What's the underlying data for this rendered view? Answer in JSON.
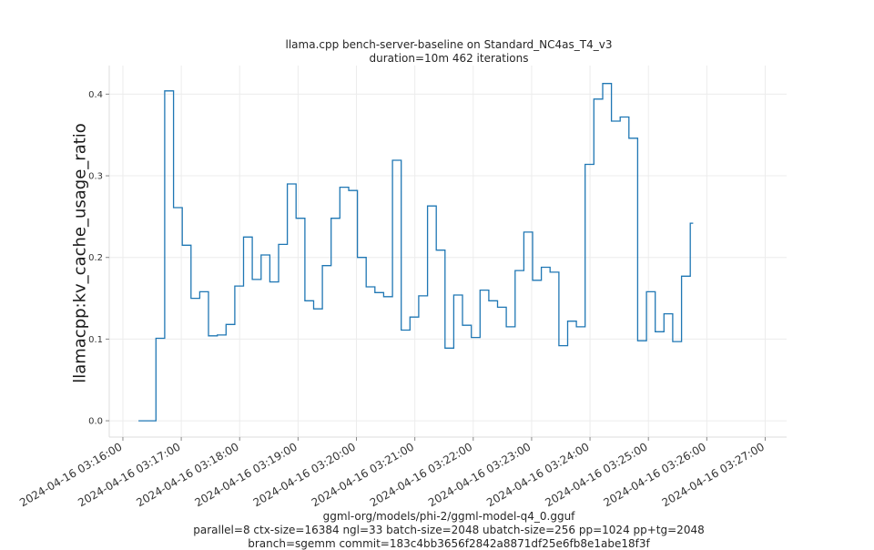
{
  "chart_data": {
    "type": "line",
    "title": "llama.cpp bench-server-baseline on Standard_NC4as_T4_v3",
    "subtitle": "duration=10m 462 iterations",
    "xlabel": "",
    "ylabel": "llamacpp:kv_cache_usage_ratio",
    "footer": [
      "ggml-org/models/phi-2/ggml-model-q4_0.gguf",
      "parallel=8 ctx-size=16384 ngl=33 batch-size=2048 ubatch-size=256 pp=1024 pp+tg=2048",
      "branch=sgemm commit=183c4bb3656f2842a8871df25e6fb8e1abe18f3f"
    ],
    "x_ticks": [
      "2024-04-16 03:16:00",
      "2024-04-16 03:17:00",
      "2024-04-16 03:18:00",
      "2024-04-16 03:19:00",
      "2024-04-16 03:20:00",
      "2024-04-16 03:21:00",
      "2024-04-16 03:22:00",
      "2024-04-16 03:23:00",
      "2024-04-16 03:24:00",
      "2024-04-16 03:25:00",
      "2024-04-16 03:26:00",
      "2024-04-16 03:27:00"
    ],
    "y_ticks": [
      "0.0",
      "0.1",
      "0.2",
      "0.3",
      "0.4"
    ],
    "xlim": [
      "2024-04-16 03:15:46",
      "2024-04-16 03:27:22"
    ],
    "ylim": [
      -0.02,
      0.435
    ],
    "grid": true,
    "line_color": "#1f77b4",
    "series": [
      {
        "points": [
          [
            "2024-04-16 03:16:16",
            0.0
          ],
          [
            "2024-04-16 03:16:34",
            0.101
          ],
          [
            "2024-04-16 03:16:43",
            0.404
          ],
          [
            "2024-04-16 03:16:52",
            0.261
          ],
          [
            "2024-04-16 03:17:01",
            0.215
          ],
          [
            "2024-04-16 03:17:10",
            0.15
          ],
          [
            "2024-04-16 03:17:19",
            0.158
          ],
          [
            "2024-04-16 03:17:28",
            0.104
          ],
          [
            "2024-04-16 03:17:37",
            0.105
          ],
          [
            "2024-04-16 03:17:46",
            0.118
          ],
          [
            "2024-04-16 03:17:55",
            0.165
          ],
          [
            "2024-04-16 03:18:04",
            0.225
          ],
          [
            "2024-04-16 03:18:13",
            0.173
          ],
          [
            "2024-04-16 03:18:22",
            0.203
          ],
          [
            "2024-04-16 03:18:31",
            0.17
          ],
          [
            "2024-04-16 03:18:40",
            0.216
          ],
          [
            "2024-04-16 03:18:49",
            0.29
          ],
          [
            "2024-04-16 03:18:58",
            0.248
          ],
          [
            "2024-04-16 03:19:07",
            0.147
          ],
          [
            "2024-04-16 03:19:16",
            0.137
          ],
          [
            "2024-04-16 03:19:25",
            0.19
          ],
          [
            "2024-04-16 03:19:34",
            0.248
          ],
          [
            "2024-04-16 03:19:43",
            0.286
          ],
          [
            "2024-04-16 03:19:52",
            0.282
          ],
          [
            "2024-04-16 03:20:01",
            0.2
          ],
          [
            "2024-04-16 03:20:10",
            0.164
          ],
          [
            "2024-04-16 03:20:19",
            0.157
          ],
          [
            "2024-04-16 03:20:28",
            0.152
          ],
          [
            "2024-04-16 03:20:37",
            0.319
          ],
          [
            "2024-04-16 03:20:46",
            0.111
          ],
          [
            "2024-04-16 03:20:55",
            0.127
          ],
          [
            "2024-04-16 03:21:04",
            0.153
          ],
          [
            "2024-04-16 03:21:13",
            0.263
          ],
          [
            "2024-04-16 03:21:22",
            0.209
          ],
          [
            "2024-04-16 03:21:31",
            0.089
          ],
          [
            "2024-04-16 03:21:40",
            0.154
          ],
          [
            "2024-04-16 03:21:49",
            0.117
          ],
          [
            "2024-04-16 03:21:58",
            0.102
          ],
          [
            "2024-04-16 03:22:07",
            0.16
          ],
          [
            "2024-04-16 03:22:16",
            0.147
          ],
          [
            "2024-04-16 03:22:25",
            0.139
          ],
          [
            "2024-04-16 03:22:34",
            0.115
          ],
          [
            "2024-04-16 03:22:43",
            0.184
          ],
          [
            "2024-04-16 03:22:52",
            0.231
          ],
          [
            "2024-04-16 03:23:01",
            0.172
          ],
          [
            "2024-04-16 03:23:10",
            0.188
          ],
          [
            "2024-04-16 03:23:19",
            0.182
          ],
          [
            "2024-04-16 03:23:28",
            0.092
          ],
          [
            "2024-04-16 03:23:37",
            0.122
          ],
          [
            "2024-04-16 03:23:46",
            0.115
          ],
          [
            "2024-04-16 03:23:55",
            0.314
          ],
          [
            "2024-04-16 03:24:04",
            0.394
          ],
          [
            "2024-04-16 03:24:13",
            0.413
          ],
          [
            "2024-04-16 03:24:22",
            0.367
          ],
          [
            "2024-04-16 03:24:31",
            0.372
          ],
          [
            "2024-04-16 03:24:40",
            0.346
          ],
          [
            "2024-04-16 03:24:49",
            0.098
          ],
          [
            "2024-04-16 03:24:58",
            0.158
          ],
          [
            "2024-04-16 03:25:07",
            0.109
          ],
          [
            "2024-04-16 03:25:16",
            0.131
          ],
          [
            "2024-04-16 03:25:25",
            0.097
          ],
          [
            "2024-04-16 03:25:34",
            0.177
          ],
          [
            "2024-04-16 03:25:43",
            0.242
          ],
          [
            "2024-04-16 03:25:46",
            0.242
          ]
        ]
      }
    ]
  }
}
